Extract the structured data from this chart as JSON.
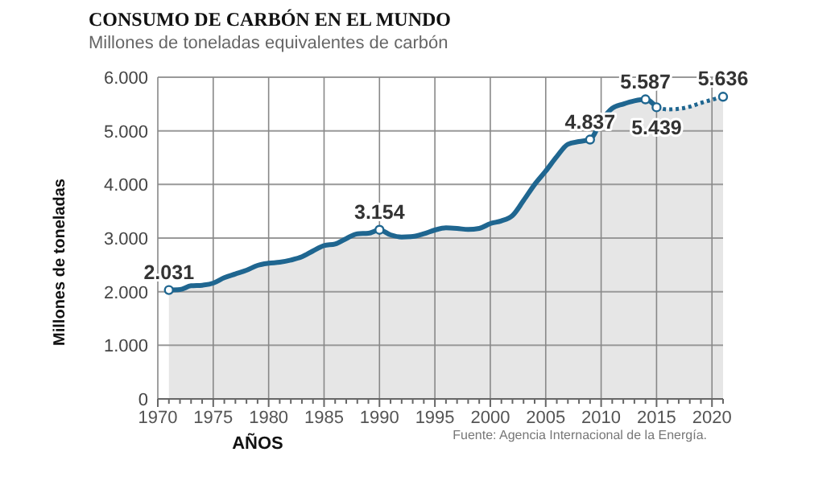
{
  "chart_data": {
    "type": "area",
    "title": "CONSUMO DE CARBÓN EN EL MUNDO",
    "subtitle": "Millones de toneladas equivalentes de carbón",
    "xlabel": "AÑOS",
    "ylabel": "Millones de toneladas",
    "annotations": [
      "Fuente: Agencia Internacional de la Energía."
    ],
    "xlim": [
      1970,
      2021
    ],
    "ylim": [
      0,
      6000
    ],
    "xticks": [
      1970,
      {
        "value": 1971,
        "label": null
      },
      {
        "value": 1972,
        "label": null
      },
      {
        "value": 1973,
        "label": null
      },
      {
        "value": 1974,
        "label": null
      },
      1975,
      {
        "value": 1976,
        "label": null
      },
      {
        "value": 1977,
        "label": null
      },
      {
        "value": 1978,
        "label": null
      },
      {
        "value": 1979,
        "label": null
      },
      1980,
      {
        "value": 1981,
        "label": null
      },
      {
        "value": 1982,
        "label": null
      },
      {
        "value": 1983,
        "label": null
      },
      {
        "value": 1984,
        "label": null
      },
      1985,
      {
        "value": 1986,
        "label": null
      },
      {
        "value": 1987,
        "label": null
      },
      {
        "value": 1988,
        "label": null
      },
      {
        "value": 1989,
        "label": null
      },
      1990,
      {
        "value": 1991,
        "label": null
      },
      {
        "value": 1992,
        "label": null
      },
      {
        "value": 1993,
        "label": null
      },
      {
        "value": 1994,
        "label": null
      },
      1995,
      {
        "value": 1996,
        "label": null
      },
      {
        "value": 1997,
        "label": null
      },
      {
        "value": 1998,
        "label": null
      },
      {
        "value": 1999,
        "label": null
      },
      2000,
      {
        "value": 2001,
        "label": null
      },
      {
        "value": 2002,
        "label": null
      },
      {
        "value": 2003,
        "label": null
      },
      {
        "value": 2004,
        "label": null
      },
      2005,
      {
        "value": 2006,
        "label": null
      },
      {
        "value": 2007,
        "label": null
      },
      {
        "value": 2008,
        "label": null
      },
      {
        "value": 2009,
        "label": null
      },
      2010,
      {
        "value": 2011,
        "label": null
      },
      {
        "value": 2012,
        "label": null
      },
      {
        "value": 2013,
        "label": null
      },
      {
        "value": 2014,
        "label": null
      },
      2015,
      {
        "value": 2016,
        "label": null
      },
      {
        "value": 2017,
        "label": null
      },
      {
        "value": 2018,
        "label": null
      },
      {
        "value": 2019,
        "label": null
      },
      2020,
      {
        "value": 2021,
        "label": null
      }
    ],
    "yticks": [
      {
        "value": 0,
        "label": "0"
      },
      {
        "value": 1000,
        "label": "1.000"
      },
      {
        "value": 2000,
        "label": "2.000"
      },
      {
        "value": 3000,
        "label": "3.000"
      },
      {
        "value": 4000,
        "label": "4.000"
      },
      {
        "value": 5000,
        "label": "5.000"
      },
      {
        "value": 6000,
        "label": "6.000"
      }
    ],
    "grid": true,
    "series": [
      {
        "color": "#1f6690",
        "line_style": "solid",
        "x": [
          1971,
          1972,
          1973,
          1974,
          1975,
          1976,
          1977,
          1978,
          1979,
          1980,
          1981,
          1982,
          1983,
          1984,
          1985,
          1986,
          1987,
          1988,
          1989,
          1990,
          1991,
          1992,
          1993,
          1994,
          1995,
          1996,
          1997,
          1998,
          1999,
          2000,
          2001,
          2002,
          2003,
          2004,
          2005,
          2006,
          2007,
          2008,
          2009,
          2010,
          2011,
          2012,
          2013,
          2014,
          2015
        ],
        "values": [
          2031,
          2040,
          2110,
          2120,
          2160,
          2260,
          2330,
          2400,
          2490,
          2530,
          2550,
          2590,
          2650,
          2760,
          2860,
          2890,
          2990,
          3080,
          3090,
          3154,
          3060,
          3020,
          3030,
          3080,
          3150,
          3190,
          3180,
          3160,
          3180,
          3270,
          3320,
          3420,
          3700,
          4000,
          4250,
          4520,
          4750,
          4800,
          4837,
          5180,
          5420,
          5500,
          5560,
          5587,
          5439
        ],
        "value_labels": [
          "2.031",
          null,
          null,
          null,
          null,
          null,
          null,
          null,
          null,
          null,
          null,
          null,
          null,
          null,
          null,
          null,
          null,
          null,
          null,
          "3.154",
          null,
          null,
          null,
          null,
          null,
          null,
          null,
          null,
          null,
          null,
          null,
          null,
          null,
          null,
          null,
          null,
          null,
          null,
          "4.837",
          null,
          null,
          null,
          null,
          "5.587",
          null
        ]
      },
      {
        "color": "#1f6690",
        "line_style": "dotted",
        "x": [
          2015,
          2016,
          2017,
          2018,
          2019,
          2020,
          2021
        ],
        "values": [
          5439,
          5400,
          5410,
          5450,
          5520,
          5580,
          5636
        ],
        "value_labels": [
          "5.439",
          null,
          null,
          null,
          null,
          null,
          "5.636"
        ]
      }
    ]
  }
}
